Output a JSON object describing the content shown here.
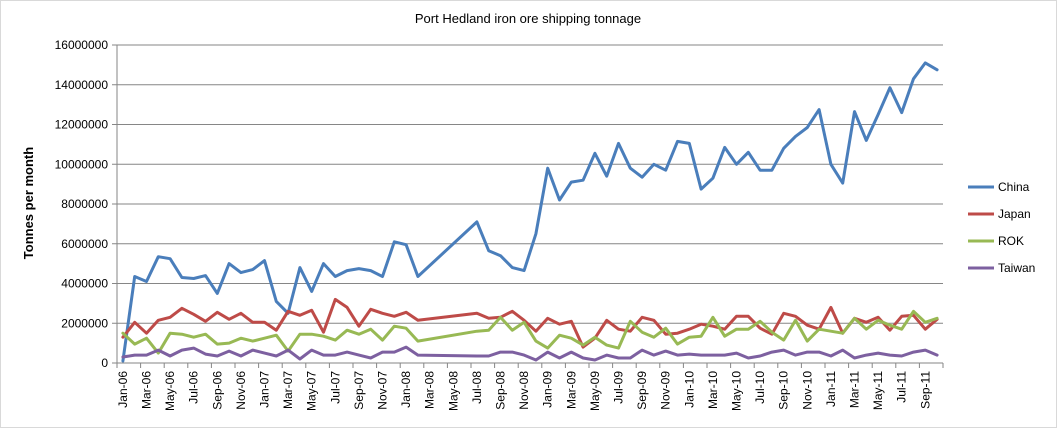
{
  "chart_data": {
    "type": "line",
    "title": "Port Hedland iron ore shipping tonnage",
    "xlabel": "",
    "ylabel": "Tonnes per month",
    "ylim": [
      0,
      16000000
    ],
    "yticks": [
      0,
      2000000,
      4000000,
      6000000,
      8000000,
      10000000,
      12000000,
      14000000,
      16000000
    ],
    "ytick_labels": [
      "0",
      "2000000",
      "4000000",
      "6000000",
      "8000000",
      "10000000",
      "12000000",
      "14000000",
      "16000000"
    ],
    "x_tick_labels": [
      "Jan-06",
      "Mar-06",
      "May-06",
      "Jul-06",
      "Sep-06",
      "Nov-06",
      "Jan-07",
      "Mar-07",
      "May-07",
      "Jul-07",
      "Sep-07",
      "Nov-07",
      "Jan-08",
      "Mar-08",
      "May-08",
      "Jul-08",
      "Sep-08",
      "Nov-08",
      "Jan-09",
      "Mar-09",
      "May-09",
      "Jul-09",
      "Sep-09",
      "Nov-09",
      "Jan-10",
      "Mar-10",
      "May-10",
      "Jul-10",
      "Sep-10",
      "Nov-10",
      "Jan-11",
      "Mar-11",
      "May-11",
      "Jul-11",
      "Sep-11"
    ],
    "grid": "horizontal",
    "legend_position": "right",
    "series": [
      {
        "name": "China",
        "color": "#4a7ebb",
        "points": [
          [
            "Jan-06",
            100000
          ],
          [
            "Feb-06",
            4350000
          ],
          [
            "Mar-06",
            4100000
          ],
          [
            "Apr-06",
            5350000
          ],
          [
            "May-06",
            5250000
          ],
          [
            "Jun-06",
            4300000
          ],
          [
            "Jul-06",
            4250000
          ],
          [
            "Aug-06",
            4400000
          ],
          [
            "Sep-06",
            3500000
          ],
          [
            "Oct-06",
            5000000
          ],
          [
            "Nov-06",
            4550000
          ],
          [
            "Dec-06",
            4700000
          ],
          [
            "Jan-07",
            5150000
          ],
          [
            "Feb-07",
            3100000
          ],
          [
            "Mar-07",
            2500000
          ],
          [
            "Apr-07",
            4800000
          ],
          [
            "May-07",
            3600000
          ],
          [
            "Jun-07",
            5000000
          ],
          [
            "Jul-07",
            4350000
          ],
          [
            "Aug-07",
            4650000
          ],
          [
            "Sep-07",
            4750000
          ],
          [
            "Oct-07",
            4650000
          ],
          [
            "Nov-07",
            4350000
          ],
          [
            "Dec-07",
            6100000
          ],
          [
            "Jan-08",
            5950000
          ],
          [
            "Feb-08",
            4350000
          ],
          [
            "Jul-08",
            7100000
          ],
          [
            "Aug-08",
            5650000
          ],
          [
            "Sep-08",
            5400000
          ],
          [
            "Oct-08",
            4800000
          ],
          [
            "Nov-08",
            4650000
          ],
          [
            "Dec-08",
            6500000
          ],
          [
            "Jan-09",
            9800000
          ],
          [
            "Feb-09",
            8200000
          ],
          [
            "Mar-09",
            9100000
          ],
          [
            "Apr-09",
            9200000
          ],
          [
            "May-09",
            10550000
          ],
          [
            "Jun-09",
            9400000
          ],
          [
            "Jul-09",
            11050000
          ],
          [
            "Aug-09",
            9800000
          ],
          [
            "Sep-09",
            9350000
          ],
          [
            "Oct-09",
            10000000
          ],
          [
            "Nov-09",
            9700000
          ],
          [
            "Dec-09",
            11150000
          ],
          [
            "Jan-10",
            11050000
          ],
          [
            "Feb-10",
            8750000
          ],
          [
            "Mar-10",
            9300000
          ],
          [
            "Apr-10",
            10850000
          ],
          [
            "May-10",
            10000000
          ],
          [
            "Jun-10",
            10600000
          ],
          [
            "Jul-10",
            9700000
          ],
          [
            "Aug-10",
            9700000
          ],
          [
            "Sep-10",
            10800000
          ],
          [
            "Oct-10",
            11400000
          ],
          [
            "Nov-10",
            11850000
          ],
          [
            "Dec-10",
            12750000
          ],
          [
            "Jan-11",
            10000000
          ],
          [
            "Feb-11",
            9050000
          ],
          [
            "Mar-11",
            12650000
          ],
          [
            "Apr-11",
            11200000
          ],
          [
            "May-11",
            12500000
          ],
          [
            "Jun-11",
            13850000
          ],
          [
            "Jul-11",
            12600000
          ],
          [
            "Aug-11",
            14300000
          ],
          [
            "Sep-11",
            15100000
          ],
          [
            "Oct-11",
            14750000
          ]
        ]
      },
      {
        "name": "Japan",
        "color": "#be4b48",
        "points": [
          [
            "Jan-06",
            1300000
          ],
          [
            "Feb-06",
            2050000
          ],
          [
            "Mar-06",
            1500000
          ],
          [
            "Apr-06",
            2150000
          ],
          [
            "May-06",
            2300000
          ],
          [
            "Jun-06",
            2750000
          ],
          [
            "Jul-06",
            2450000
          ],
          [
            "Aug-06",
            2100000
          ],
          [
            "Sep-06",
            2550000
          ],
          [
            "Oct-06",
            2200000
          ],
          [
            "Nov-06",
            2500000
          ],
          [
            "Dec-06",
            2050000
          ],
          [
            "Jan-07",
            2050000
          ],
          [
            "Feb-07",
            1650000
          ],
          [
            "Mar-07",
            2600000
          ],
          [
            "Apr-07",
            2400000
          ],
          [
            "May-07",
            2650000
          ],
          [
            "Jun-07",
            1550000
          ],
          [
            "Jul-07",
            3200000
          ],
          [
            "Aug-07",
            2800000
          ],
          [
            "Sep-07",
            1850000
          ],
          [
            "Oct-07",
            2700000
          ],
          [
            "Nov-07",
            2500000
          ],
          [
            "Dec-07",
            2350000
          ],
          [
            "Jan-08",
            2550000
          ],
          [
            "Feb-08",
            2150000
          ],
          [
            "Jul-08",
            2500000
          ],
          [
            "Aug-08",
            2250000
          ],
          [
            "Sep-08",
            2300000
          ],
          [
            "Oct-08",
            2600000
          ],
          [
            "Nov-08",
            2150000
          ],
          [
            "Dec-08",
            1600000
          ],
          [
            "Jan-09",
            2250000
          ],
          [
            "Feb-09",
            1950000
          ],
          [
            "Mar-09",
            2100000
          ],
          [
            "Apr-09",
            800000
          ],
          [
            "May-09",
            1250000
          ],
          [
            "Jun-09",
            2150000
          ],
          [
            "Jul-09",
            1700000
          ],
          [
            "Aug-09",
            1600000
          ],
          [
            "Sep-09",
            2300000
          ],
          [
            "Oct-09",
            2150000
          ],
          [
            "Nov-09",
            1450000
          ],
          [
            "Dec-09",
            1500000
          ],
          [
            "Jan-10",
            1700000
          ],
          [
            "Feb-10",
            1950000
          ],
          [
            "Mar-10",
            1850000
          ],
          [
            "Apr-10",
            1700000
          ],
          [
            "May-10",
            2350000
          ],
          [
            "Jun-10",
            2350000
          ],
          [
            "Jul-10",
            1750000
          ],
          [
            "Aug-10",
            1450000
          ],
          [
            "Sep-10",
            2500000
          ],
          [
            "Oct-10",
            2350000
          ],
          [
            "Nov-10",
            1900000
          ],
          [
            "Dec-10",
            1700000
          ],
          [
            "Jan-11",
            2800000
          ],
          [
            "Feb-11",
            1500000
          ],
          [
            "Mar-11",
            2250000
          ],
          [
            "Apr-11",
            2050000
          ],
          [
            "May-11",
            2300000
          ],
          [
            "Jun-11",
            1650000
          ],
          [
            "Jul-11",
            2350000
          ],
          [
            "Aug-11",
            2400000
          ],
          [
            "Sep-11",
            1700000
          ],
          [
            "Oct-11",
            2200000
          ]
        ]
      },
      {
        "name": "ROK",
        "color": "#98b954",
        "points": [
          [
            "Jan-06",
            1500000
          ],
          [
            "Feb-06",
            950000
          ],
          [
            "Mar-06",
            1250000
          ],
          [
            "Apr-06",
            500000
          ],
          [
            "May-06",
            1500000
          ],
          [
            "Jun-06",
            1450000
          ],
          [
            "Jul-06",
            1300000
          ],
          [
            "Aug-06",
            1450000
          ],
          [
            "Sep-06",
            950000
          ],
          [
            "Oct-06",
            1000000
          ],
          [
            "Nov-06",
            1250000
          ],
          [
            "Dec-06",
            1100000
          ],
          [
            "Jan-07",
            1250000
          ],
          [
            "Feb-07",
            1400000
          ],
          [
            "Mar-07",
            600000
          ],
          [
            "Apr-07",
            1450000
          ],
          [
            "May-07",
            1450000
          ],
          [
            "Jun-07",
            1350000
          ],
          [
            "Jul-07",
            1150000
          ],
          [
            "Aug-07",
            1650000
          ],
          [
            "Sep-07",
            1450000
          ],
          [
            "Oct-07",
            1700000
          ],
          [
            "Nov-07",
            1150000
          ],
          [
            "Dec-07",
            1850000
          ],
          [
            "Jan-08",
            1750000
          ],
          [
            "Feb-08",
            1100000
          ],
          [
            "Jul-08",
            1600000
          ],
          [
            "Aug-08",
            1650000
          ],
          [
            "Sep-08",
            2300000
          ],
          [
            "Oct-08",
            1650000
          ],
          [
            "Nov-08",
            2050000
          ],
          [
            "Dec-08",
            1100000
          ],
          [
            "Jan-09",
            750000
          ],
          [
            "Feb-09",
            1400000
          ],
          [
            "Mar-09",
            1250000
          ],
          [
            "Apr-09",
            900000
          ],
          [
            "May-09",
            1300000
          ],
          [
            "Jun-09",
            900000
          ],
          [
            "Jul-09",
            750000
          ],
          [
            "Aug-09",
            2100000
          ],
          [
            "Sep-09",
            1550000
          ],
          [
            "Oct-09",
            1300000
          ],
          [
            "Nov-09",
            1750000
          ],
          [
            "Dec-09",
            950000
          ],
          [
            "Jan-10",
            1300000
          ],
          [
            "Feb-10",
            1350000
          ],
          [
            "Mar-10",
            2300000
          ],
          [
            "Apr-10",
            1350000
          ],
          [
            "May-10",
            1700000
          ],
          [
            "Jun-10",
            1700000
          ],
          [
            "Jul-10",
            2100000
          ],
          [
            "Aug-10",
            1550000
          ],
          [
            "Sep-10",
            1150000
          ],
          [
            "Oct-10",
            2150000
          ],
          [
            "Nov-10",
            1100000
          ],
          [
            "Dec-10",
            1700000
          ],
          [
            "Jan-11",
            1600000
          ],
          [
            "Feb-11",
            1500000
          ],
          [
            "Mar-11",
            2250000
          ],
          [
            "Apr-11",
            1700000
          ],
          [
            "May-11",
            2150000
          ],
          [
            "Jun-11",
            1900000
          ],
          [
            "Jul-11",
            1700000
          ],
          [
            "Aug-11",
            2600000
          ],
          [
            "Sep-11",
            2050000
          ],
          [
            "Oct-11",
            2250000
          ]
        ]
      },
      {
        "name": "Taiwan",
        "color": "#7d60a0",
        "points": [
          [
            "Jan-06",
            300000
          ],
          [
            "Feb-06",
            400000
          ],
          [
            "Mar-06",
            400000
          ],
          [
            "Apr-06",
            650000
          ],
          [
            "May-06",
            350000
          ],
          [
            "Jun-06",
            650000
          ],
          [
            "Jul-06",
            750000
          ],
          [
            "Aug-06",
            450000
          ],
          [
            "Sep-06",
            350000
          ],
          [
            "Oct-06",
            600000
          ],
          [
            "Nov-06",
            350000
          ],
          [
            "Dec-06",
            650000
          ],
          [
            "Jan-07",
            500000
          ],
          [
            "Feb-07",
            350000
          ],
          [
            "Mar-07",
            650000
          ],
          [
            "Apr-07",
            200000
          ],
          [
            "May-07",
            650000
          ],
          [
            "Jun-07",
            400000
          ],
          [
            "Jul-07",
            400000
          ],
          [
            "Aug-07",
            550000
          ],
          [
            "Sep-07",
            400000
          ],
          [
            "Oct-07",
            250000
          ],
          [
            "Nov-07",
            550000
          ],
          [
            "Dec-07",
            550000
          ],
          [
            "Jan-08",
            800000
          ],
          [
            "Feb-08",
            400000
          ],
          [
            "Jul-08",
            350000
          ],
          [
            "Aug-08",
            350000
          ],
          [
            "Sep-08",
            550000
          ],
          [
            "Oct-08",
            550000
          ],
          [
            "Nov-08",
            400000
          ],
          [
            "Dec-08",
            150000
          ],
          [
            "Jan-09",
            550000
          ],
          [
            "Feb-09",
            250000
          ],
          [
            "Mar-09",
            550000
          ],
          [
            "Apr-09",
            250000
          ],
          [
            "May-09",
            150000
          ],
          [
            "Jun-09",
            400000
          ],
          [
            "Jul-09",
            250000
          ],
          [
            "Aug-09",
            250000
          ],
          [
            "Sep-09",
            650000
          ],
          [
            "Oct-09",
            400000
          ],
          [
            "Nov-09",
            600000
          ],
          [
            "Dec-09",
            400000
          ],
          [
            "Jan-10",
            450000
          ],
          [
            "Feb-10",
            400000
          ],
          [
            "Mar-10",
            400000
          ],
          [
            "Apr-10",
            400000
          ],
          [
            "May-10",
            500000
          ],
          [
            "Jun-10",
            250000
          ],
          [
            "Jul-10",
            350000
          ],
          [
            "Aug-10",
            550000
          ],
          [
            "Sep-10",
            650000
          ],
          [
            "Oct-10",
            400000
          ],
          [
            "Nov-10",
            550000
          ],
          [
            "Dec-10",
            550000
          ],
          [
            "Jan-11",
            350000
          ],
          [
            "Feb-11",
            650000
          ],
          [
            "Mar-11",
            250000
          ],
          [
            "Apr-11",
            400000
          ],
          [
            "May-11",
            500000
          ],
          [
            "Jun-11",
            400000
          ],
          [
            "Jul-11",
            350000
          ],
          [
            "Aug-11",
            550000
          ],
          [
            "Sep-11",
            650000
          ],
          [
            "Oct-11",
            400000
          ]
        ]
      }
    ]
  }
}
